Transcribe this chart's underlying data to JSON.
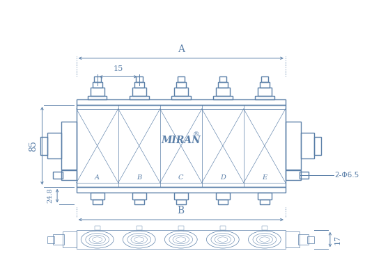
{
  "bg_color": "#ffffff",
  "lc": "#5a7fa8",
  "tc": "#5a7fa8",
  "fig_width": 5.24,
  "fig_height": 3.87,
  "dpi": 100,
  "section_labels": [
    "A",
    "B",
    "C",
    "D",
    "E"
  ],
  "dim_A": "A",
  "dim_B": "B",
  "dim_15": "15",
  "dim_85": "85",
  "dim_248": "24.8",
  "dim_phi": "2-Φ6.5",
  "dim_17": "17",
  "miran_text": "MIRAN",
  "reg_text": "®"
}
